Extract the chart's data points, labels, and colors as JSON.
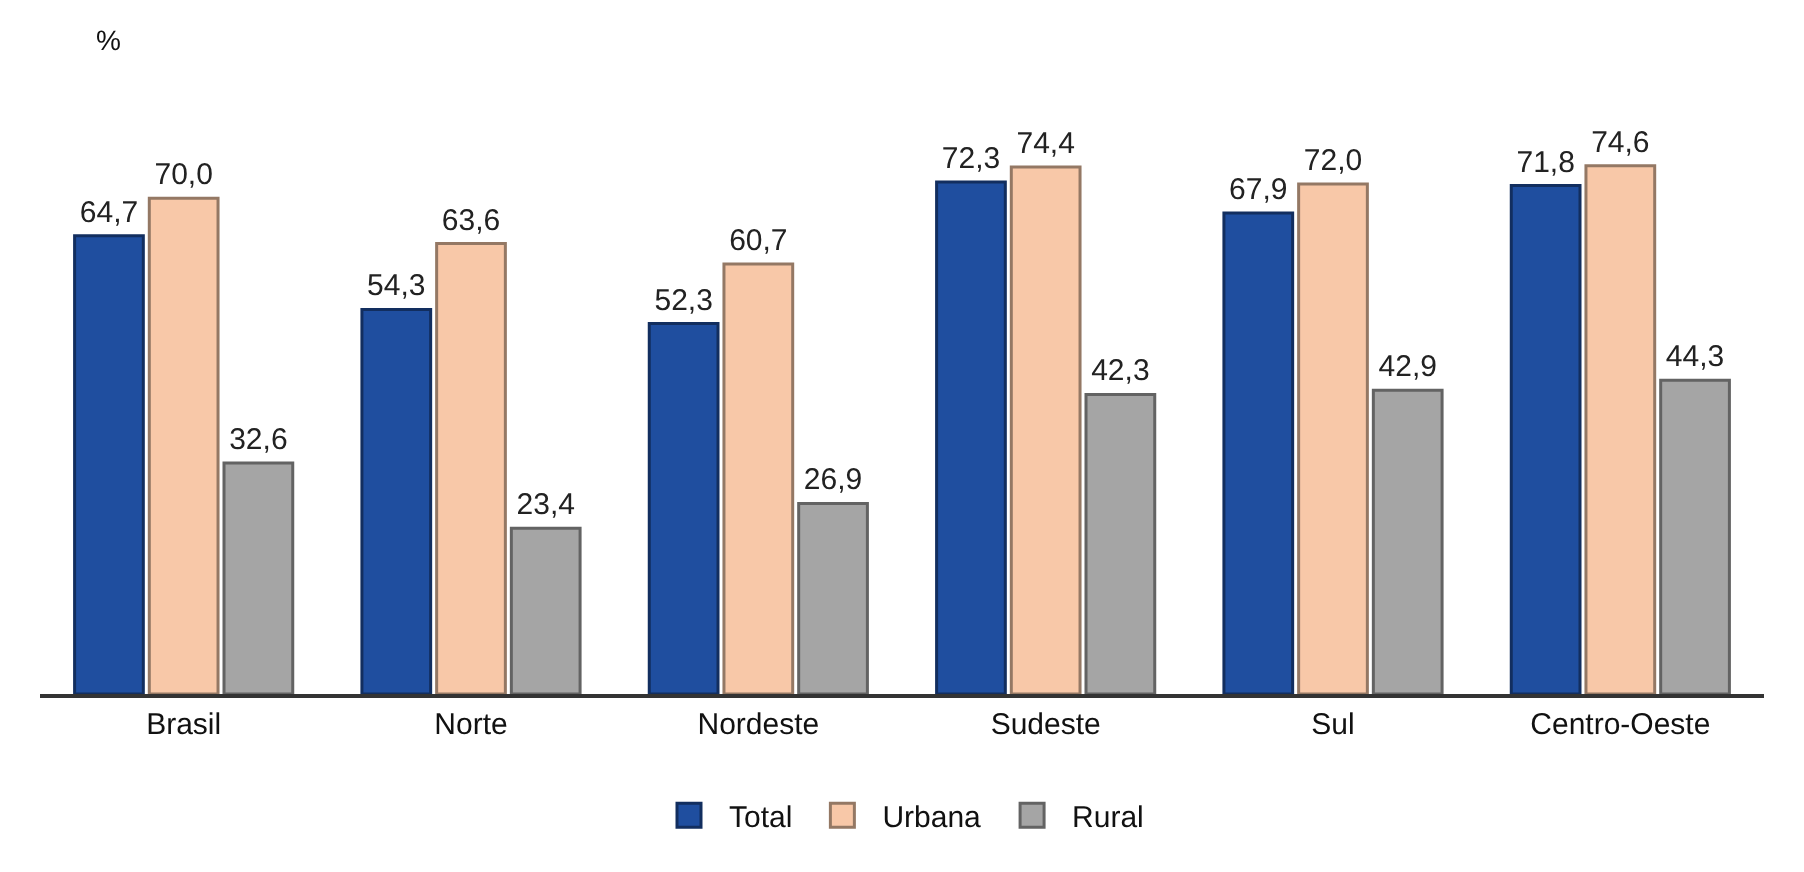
{
  "chart_data": {
    "type": "bar",
    "ylabel": "%",
    "categories": [
      "Brasil",
      "Norte",
      "Nordeste",
      "Sudeste",
      "Sul",
      "Centro-Oeste"
    ],
    "series": [
      {
        "name": "Total",
        "color": "#1f4e9f",
        "values": [
          64.7,
          54.3,
          52.3,
          72.3,
          67.9,
          71.8
        ],
        "value_labels": [
          "64,7",
          "54,3",
          "52,3",
          "72,3",
          "67,9",
          "71,8"
        ]
      },
      {
        "name": "Urbana",
        "color": "#f8c8a8",
        "values": [
          70.0,
          63.6,
          60.7,
          74.4,
          72.0,
          74.6
        ],
        "value_labels": [
          "70,0",
          "63,6",
          "60,7",
          "74,4",
          "72,0",
          "74,6"
        ]
      },
      {
        "name": "Rural",
        "color": "#a5a5a5",
        "values": [
          32.6,
          23.4,
          26.9,
          42.3,
          42.9,
          44.3
        ],
        "value_labels": [
          "32,6",
          "23,4",
          "26,9",
          "42,3",
          "42,9",
          "44,3"
        ]
      }
    ],
    "legend": "bottom"
  }
}
